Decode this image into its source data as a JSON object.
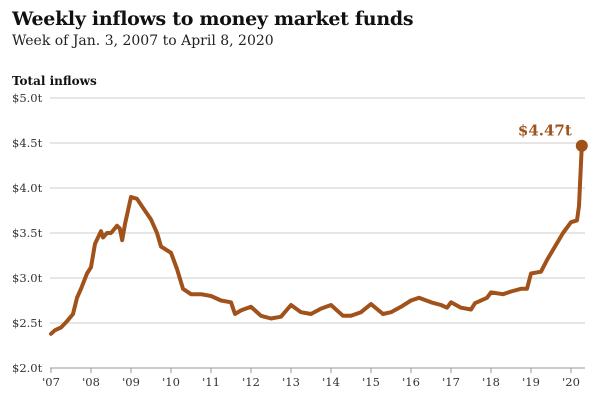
{
  "chart_data": {
    "type": "line",
    "title": "Weekly inflows to money market funds",
    "subtitle": "Week of Jan. 3, 2007 to April 8, 2020",
    "ylabel": "Total inflows",
    "xlabel": "",
    "ylim": [
      2.0,
      5.0
    ],
    "xlim": [
      2007,
      2020.3
    ],
    "y_ticks": [
      {
        "v": 2.0,
        "label": "$2.0t"
      },
      {
        "v": 2.5,
        "label": "$2.5t"
      },
      {
        "v": 3.0,
        "label": "$3.0t"
      },
      {
        "v": 3.5,
        "label": "$3.5t"
      },
      {
        "v": 4.0,
        "label": "$4.0t"
      },
      {
        "v": 4.5,
        "label": "$4.5t"
      },
      {
        "v": 5.0,
        "label": "$5.0t"
      }
    ],
    "x_ticks": [
      {
        "v": 2007,
        "label": "'07"
      },
      {
        "v": 2008,
        "label": "'08"
      },
      {
        "v": 2009,
        "label": "'09"
      },
      {
        "v": 2010,
        "label": "'10"
      },
      {
        "v": 2011,
        "label": "'11"
      },
      {
        "v": 2012,
        "label": "'12"
      },
      {
        "v": 2013,
        "label": "'13"
      },
      {
        "v": 2014,
        "label": "'14"
      },
      {
        "v": 2015,
        "label": "'15"
      },
      {
        "v": 2016,
        "label": "'16"
      },
      {
        "v": 2017,
        "label": "'17"
      },
      {
        "v": 2018,
        "label": "'18"
      },
      {
        "v": 2019,
        "label": "'19"
      },
      {
        "v": 2020,
        "label": "'20"
      }
    ],
    "grid": true,
    "series": [
      {
        "name": "Total inflows",
        "color": "#a0521a",
        "x": [
          2007.0,
          2007.1,
          2007.25,
          2007.4,
          2007.55,
          2007.65,
          2007.75,
          2007.9,
          2008.0,
          2008.1,
          2008.25,
          2008.3,
          2008.4,
          2008.5,
          2008.65,
          2008.72,
          2008.78,
          2008.85,
          2009.0,
          2009.15,
          2009.3,
          2009.5,
          2009.65,
          2009.75,
          2010.0,
          2010.15,
          2010.3,
          2010.5,
          2010.75,
          2011.0,
          2011.25,
          2011.5,
          2011.6,
          2011.75,
          2012.0,
          2012.25,
          2012.5,
          2012.75,
          2013.0,
          2013.25,
          2013.5,
          2013.75,
          2014.0,
          2014.3,
          2014.5,
          2014.75,
          2015.0,
          2015.3,
          2015.5,
          2015.75,
          2016.0,
          2016.2,
          2016.5,
          2016.75,
          2016.9,
          2017.0,
          2017.25,
          2017.5,
          2017.6,
          2017.9,
          2018.0,
          2018.3,
          2018.5,
          2018.75,
          2018.9,
          2019.0,
          2019.25,
          2019.4,
          2019.6,
          2019.8,
          2020.0,
          2020.15,
          2020.2,
          2020.27
        ],
        "values": [
          2.38,
          2.42,
          2.45,
          2.52,
          2.6,
          2.78,
          2.88,
          3.05,
          3.12,
          3.38,
          3.52,
          3.45,
          3.5,
          3.5,
          3.58,
          3.55,
          3.42,
          3.6,
          3.9,
          3.88,
          3.78,
          3.65,
          3.5,
          3.35,
          3.28,
          3.1,
          2.88,
          2.82,
          2.82,
          2.8,
          2.75,
          2.73,
          2.6,
          2.64,
          2.68,
          2.58,
          2.55,
          2.57,
          2.7,
          2.62,
          2.6,
          2.66,
          2.7,
          2.58,
          2.58,
          2.62,
          2.71,
          2.6,
          2.62,
          2.68,
          2.75,
          2.78,
          2.73,
          2.7,
          2.67,
          2.73,
          2.67,
          2.65,
          2.72,
          2.78,
          2.84,
          2.82,
          2.85,
          2.88,
          2.88,
          3.05,
          3.07,
          3.2,
          3.35,
          3.5,
          3.62,
          3.64,
          3.8,
          4.47
        ]
      }
    ],
    "annotations": [
      {
        "x": 2020.27,
        "y": 4.47,
        "label": "$4.47t"
      }
    ],
    "legend": "none"
  }
}
